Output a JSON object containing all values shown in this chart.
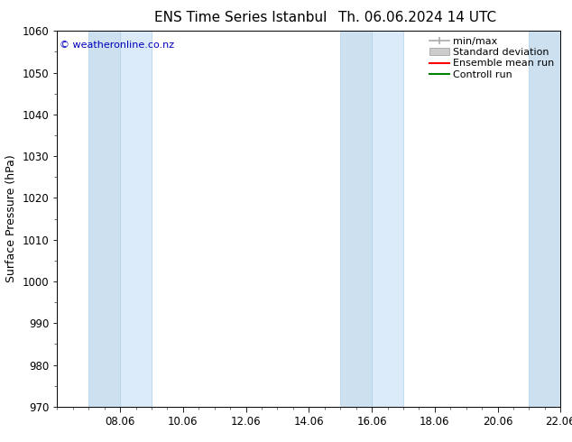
{
  "title_left": "ENS Time Series Istanbul",
  "title_right": "Th. 06.06.2024 14 UTC",
  "ylabel": "Surface Pressure (hPa)",
  "ylim": [
    970,
    1060
  ],
  "yticks": [
    970,
    980,
    990,
    1000,
    1010,
    1020,
    1030,
    1040,
    1050,
    1060
  ],
  "xlim_num": [
    0.0,
    16.0
  ],
  "xtick_major_positions": [
    2,
    4,
    6,
    8,
    10,
    12,
    14,
    16
  ],
  "xtick_major_labels": [
    "08.06",
    "10.06",
    "12.06",
    "14.06",
    "16.06",
    "18.06",
    "20.06",
    "22.06"
  ],
  "shaded_bands": [
    {
      "xmin": 1.0,
      "xmax": 2.0
    },
    {
      "xmin": 2.0,
      "xmax": 3.0
    },
    {
      "xmin": 9.0,
      "xmax": 10.0
    },
    {
      "xmin": 10.0,
      "xmax": 11.0
    },
    {
      "xmin": 15.0,
      "xmax": 16.0
    }
  ],
  "band_colors": [
    "#cce0f0",
    "#daeaf8",
    "#cce0f0",
    "#daeaf8",
    "#cce0f0"
  ],
  "band_edge_color": "#b0cfe8",
  "copyright_text": "© weatheronline.co.nz",
  "copyright_color": "#0000bb",
  "legend_entries": [
    "min/max",
    "Standard deviation",
    "Ensemble mean run",
    "Controll run"
  ],
  "legend_line_colors": [
    "#aaaaaa",
    "#cccccc",
    "#ff0000",
    "#008000"
  ],
  "bg_color": "#ffffff",
  "title_fontsize": 11,
  "axis_label_fontsize": 9,
  "tick_fontsize": 8.5,
  "legend_fontsize": 8
}
